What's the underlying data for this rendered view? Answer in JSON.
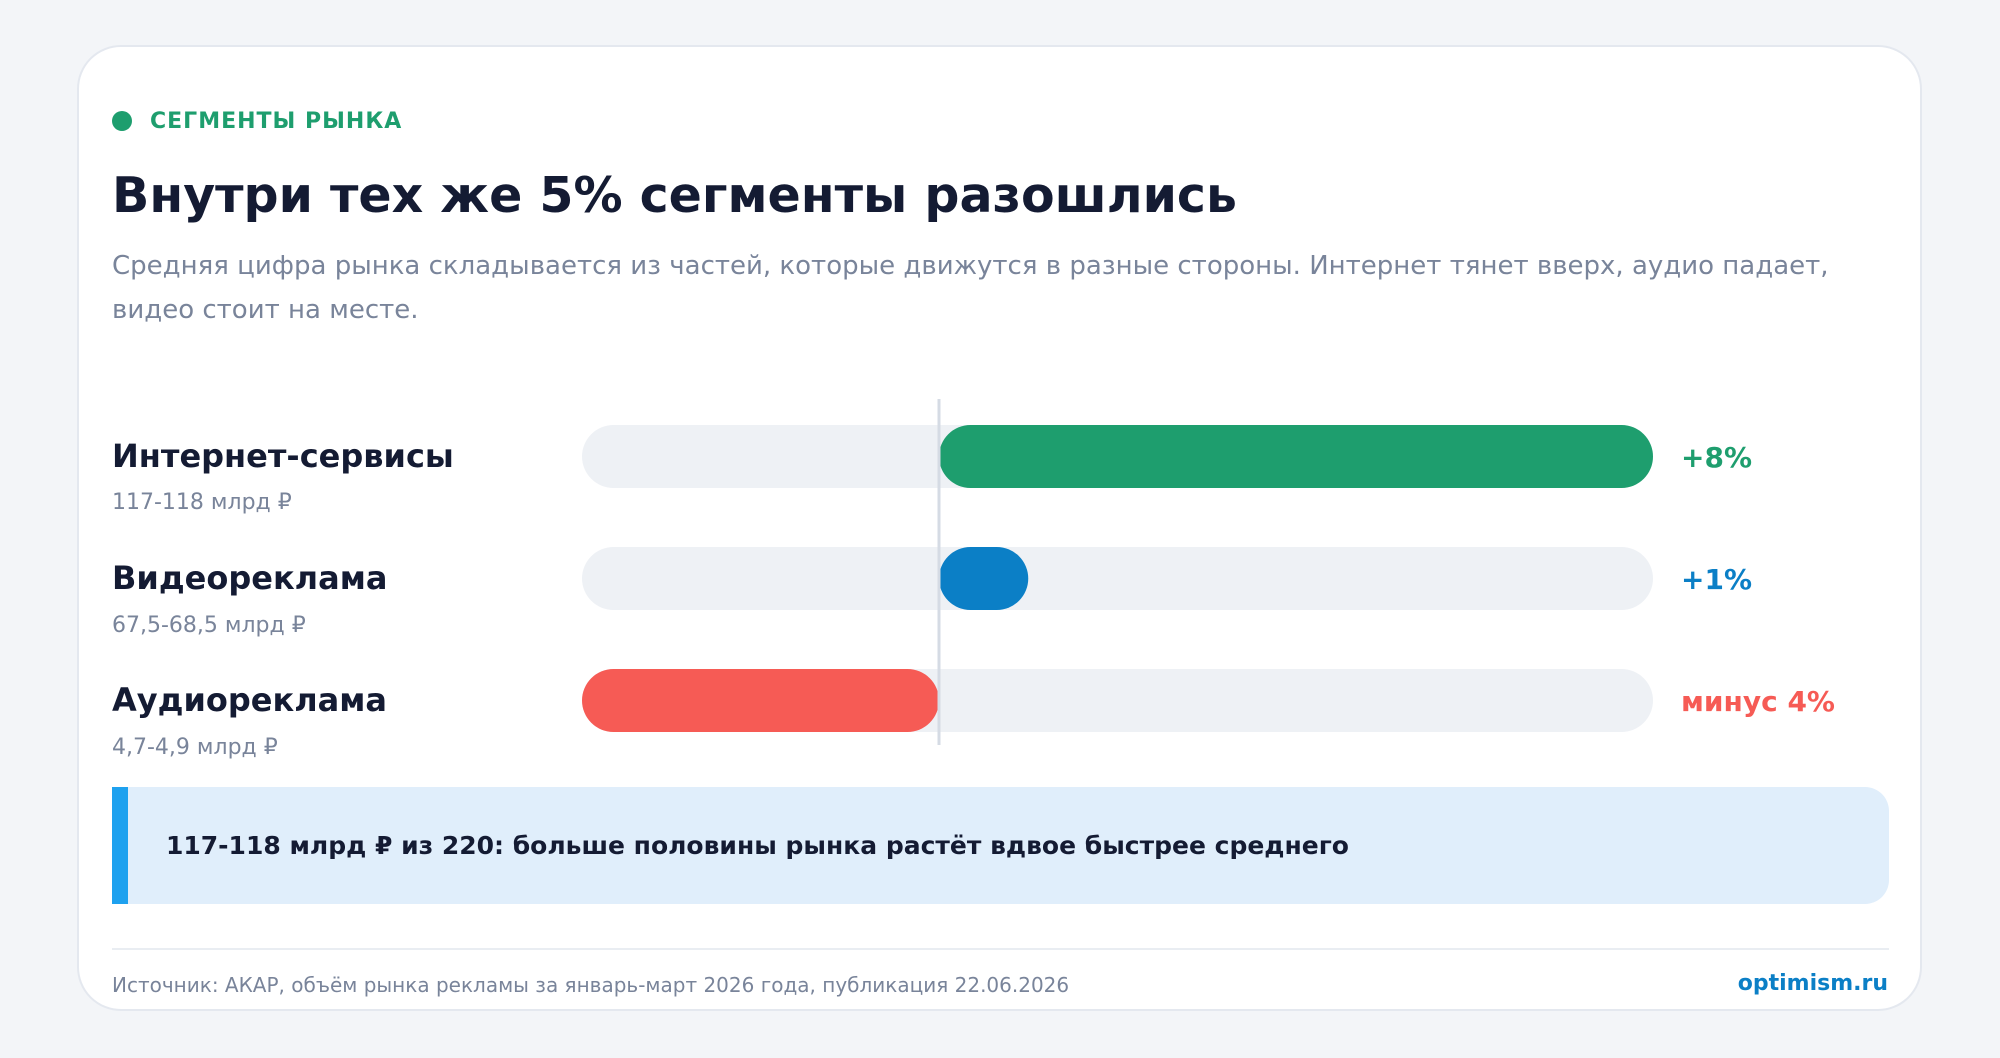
{
  "eyebrow": "СЕГМЕНТЫ РЫНКА",
  "title": "Внутри тех же 5% сегменты разошлись",
  "subtitle": "Средняя цифра рынка складывается из частей, которые движутся в разные стороны. Интернет тянет вверх, аудио падает, видео стоит на месте.",
  "colors": {
    "accent_green": "#1e9e6e",
    "accent_blue": "#0b7fc6",
    "accent_red": "#f65b55",
    "track": "#eef1f5",
    "callout_bar": "#1ea1ef",
    "brand": "#0b7fc6"
  },
  "chart_data": {
    "type": "bar",
    "orientation": "horizontal",
    "categories": [
      "Интернет-сервисы",
      "Видеореклама",
      "Аудиореклама"
    ],
    "sizes": [
      "117-118 млрд ₽",
      "67,5-68,5 млрд ₽",
      "4,7-4,9 млрд ₽"
    ],
    "values": [
      8,
      1,
      -4
    ],
    "value_labels": [
      "+8%",
      "+1%",
      "минус 4%"
    ],
    "bar_colors": [
      "#1e9e6e",
      "#0b7fc6",
      "#f65b55"
    ],
    "xlim": [
      -4,
      8
    ],
    "zero_line": true,
    "grid": false
  },
  "callout": "117-118 млрд ₽ из 220: больше половины рынка растёт вдвое быстрее среднего",
  "footer": {
    "source": "Источник: АКАР, объём рынка рекламы за январь-март 2026 года, публикация 22.06.2026",
    "brand": "optimism.ru"
  }
}
